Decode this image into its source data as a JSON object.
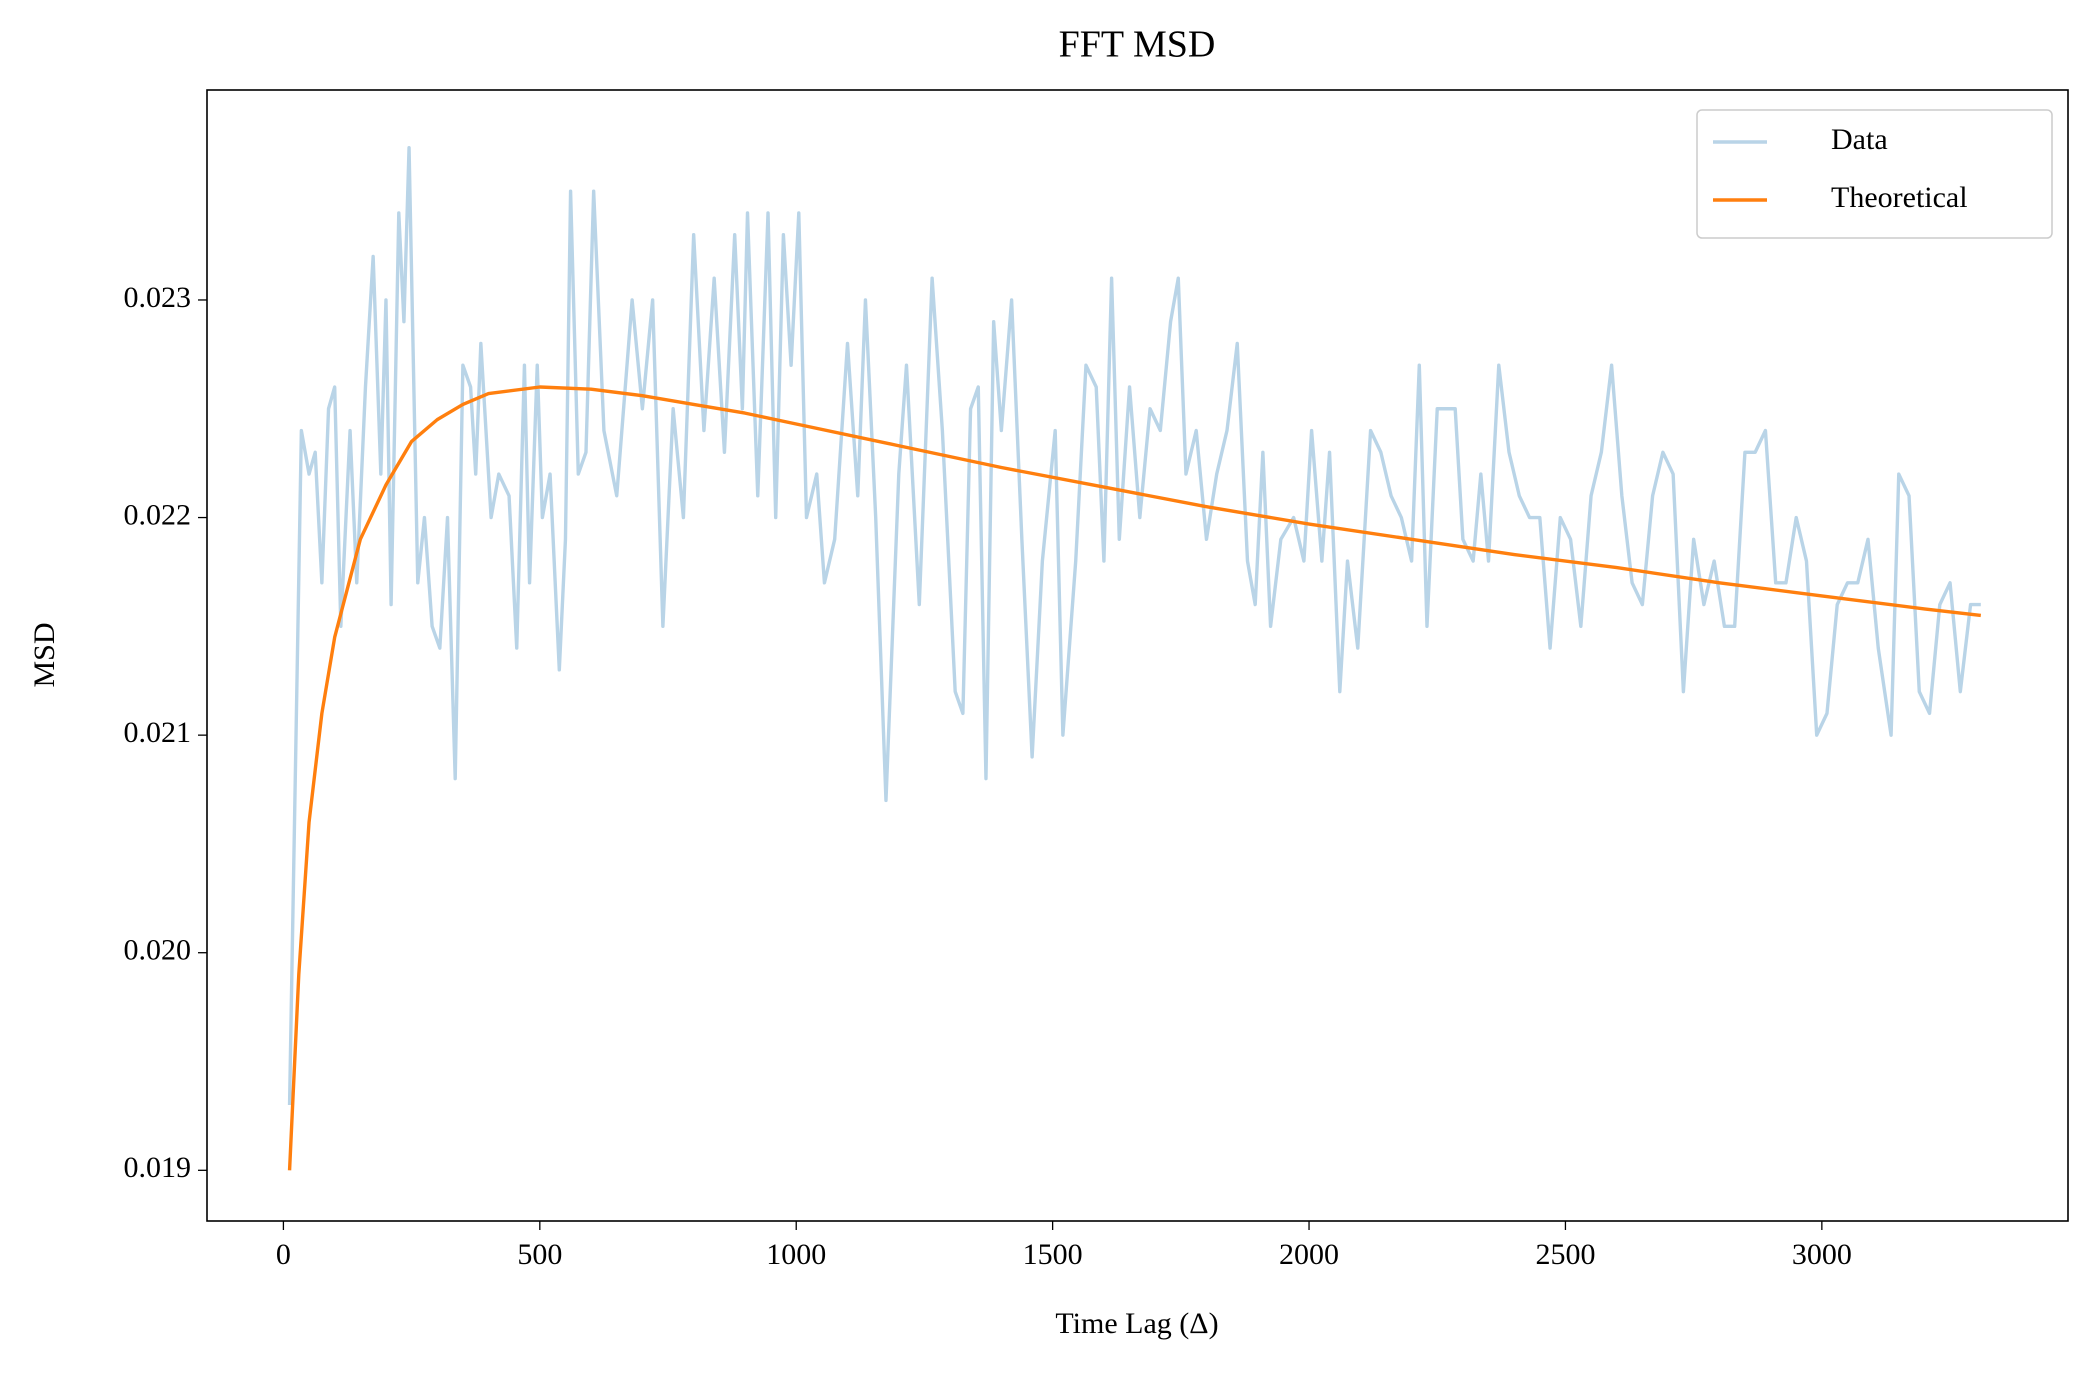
{
  "chart_data": {
    "type": "line",
    "title": "FFT MSD",
    "xlabel": "Time Lag (Δ)",
    "ylabel": "MSD",
    "xlim": [
      -149,
      3480
    ],
    "ylim": [
      0.018767,
      0.023965
    ],
    "xticks": [
      0,
      500,
      1000,
      1500,
      2000,
      2500,
      3000
    ],
    "yticks": [
      0.019,
      {
        "value": 0.02,
        "label": "0.020"
      },
      0.021,
      0.022,
      0.023
    ],
    "legend": "upper right",
    "series": [
      {
        "name": "Data",
        "color": "#b9d4e7",
        "x": [
          12,
          35,
          50,
          62,
          75,
          88,
          100,
          112,
          130,
          143,
          160,
          175,
          190,
          200,
          210,
          225,
          235,
          245,
          262,
          275,
          290,
          305,
          320,
          335,
          350,
          365,
          375,
          385,
          405,
          420,
          440,
          455,
          470,
          480,
          495,
          505,
          520,
          538,
          550,
          560,
          575,
          590,
          605,
          625,
          650,
          680,
          700,
          720,
          740,
          760,
          780,
          800,
          820,
          840,
          860,
          880,
          895,
          905,
          925,
          945,
          960,
          975,
          990,
          1005,
          1020,
          1040,
          1055,
          1075,
          1100,
          1120,
          1135,
          1155,
          1175,
          1200,
          1215,
          1240,
          1265,
          1285,
          1310,
          1325,
          1340,
          1355,
          1370,
          1385,
          1400,
          1420,
          1440,
          1460,
          1480,
          1505,
          1520,
          1545,
          1565,
          1585,
          1600,
          1615,
          1630,
          1650,
          1670,
          1690,
          1710,
          1730,
          1745,
          1760,
          1780,
          1800,
          1820,
          1840,
          1860,
          1880,
          1895,
          1910,
          1925,
          1945,
          1970,
          1990,
          2005,
          2025,
          2040,
          2060,
          2075,
          2095,
          2120,
          2140,
          2160,
          2180,
          2200,
          2215,
          2230,
          2250,
          2270,
          2285,
          2300,
          2320,
          2335,
          2350,
          2370,
          2390,
          2410,
          2430,
          2450,
          2470,
          2490,
          2510,
          2530,
          2550,
          2570,
          2590,
          2610,
          2630,
          2650,
          2670,
          2690,
          2710,
          2730,
          2750,
          2770,
          2790,
          2810,
          2830,
          2850,
          2870,
          2890,
          2910,
          2930,
          2950,
          2970,
          2990,
          3010,
          3030,
          3050,
          3070,
          3090,
          3110,
          3135,
          3150,
          3170,
          3190,
          3210,
          3230,
          3250,
          3270,
          3290,
          3310
        ],
        "values": [
          0.0193,
          0.0224,
          0.0222,
          0.0223,
          0.0217,
          0.0225,
          0.0226,
          0.0215,
          0.0224,
          0.0217,
          0.0226,
          0.0232,
          0.0222,
          0.023,
          0.0216,
          0.0234,
          0.0229,
          0.0237,
          0.0217,
          0.022,
          0.0215,
          0.0214,
          0.022,
          0.0208,
          0.0227,
          0.0226,
          0.0222,
          0.0228,
          0.022,
          0.0222,
          0.0221,
          0.0214,
          0.0227,
          0.0217,
          0.0227,
          0.022,
          0.0222,
          0.0213,
          0.0219,
          0.0235,
          0.0222,
          0.0223,
          0.0235,
          0.0224,
          0.0221,
          0.023,
          0.0225,
          0.023,
          0.0215,
          0.0225,
          0.022,
          0.0233,
          0.0224,
          0.0231,
          0.0223,
          0.0233,
          0.0225,
          0.0234,
          0.0221,
          0.0234,
          0.022,
          0.0233,
          0.0227,
          0.0234,
          0.022,
          0.0222,
          0.0217,
          0.0219,
          0.0228,
          0.0221,
          0.023,
          0.022,
          0.0207,
          0.0222,
          0.0227,
          0.0216,
          0.0231,
          0.0224,
          0.0212,
          0.0211,
          0.0225,
          0.0226,
          0.0208,
          0.0229,
          0.0224,
          0.023,
          0.0219,
          0.0209,
          0.0218,
          0.0224,
          0.021,
          0.0218,
          0.0227,
          0.0226,
          0.0218,
          0.0231,
          0.0219,
          0.0226,
          0.022,
          0.0225,
          0.0224,
          0.0229,
          0.0231,
          0.0222,
          0.0224,
          0.0219,
          0.0222,
          0.0224,
          0.0228,
          0.0218,
          0.0216,
          0.0223,
          0.0215,
          0.0219,
          0.022,
          0.0218,
          0.0224,
          0.0218,
          0.0223,
          0.0212,
          0.0218,
          0.0214,
          0.0224,
          0.0223,
          0.0221,
          0.022,
          0.0218,
          0.0227,
          0.0215,
          0.0225,
          0.0225,
          0.0225,
          0.0219,
          0.0218,
          0.0222,
          0.0218,
          0.0227,
          0.0223,
          0.0221,
          0.022,
          0.022,
          0.0214,
          0.022,
          0.0219,
          0.0215,
          0.0221,
          0.0223,
          0.0227,
          0.0221,
          0.0217,
          0.0216,
          0.0221,
          0.0223,
          0.0222,
          0.0212,
          0.0219,
          0.0216,
          0.0218,
          0.0215,
          0.0215,
          0.0223,
          0.0223,
          0.0224,
          0.0217,
          0.0217,
          0.022,
          0.0218,
          0.021,
          0.0211,
          0.0216,
          0.0217,
          0.0217,
          0.0219,
          0.0214,
          0.021,
          0.0222,
          0.0221,
          0.0212,
          0.0211,
          0.0216,
          0.0217,
          0.0212,
          0.0216,
          0.0216
        ]
      },
      {
        "name": "Theoretical",
        "color": "#ff7f0e",
        "x": [
          12,
          30,
          50,
          75,
          100,
          150,
          200,
          250,
          300,
          350,
          400,
          500,
          600,
          700,
          800,
          900,
          1000,
          1200,
          1400,
          1600,
          1800,
          2000,
          2200,
          2400,
          2600,
          2800,
          3000,
          3200,
          3310
        ],
        "values": [
          0.019,
          0.0199,
          0.0206,
          0.0211,
          0.02145,
          0.0219,
          0.02215,
          0.02235,
          0.02245,
          0.02252,
          0.02257,
          0.0226,
          0.02259,
          0.02256,
          0.02252,
          0.02248,
          0.02243,
          0.02233,
          0.02223,
          0.02214,
          0.02205,
          0.02197,
          0.0219,
          0.02183,
          0.02177,
          0.0217,
          0.02164,
          0.02158,
          0.02155
        ]
      }
    ]
  }
}
